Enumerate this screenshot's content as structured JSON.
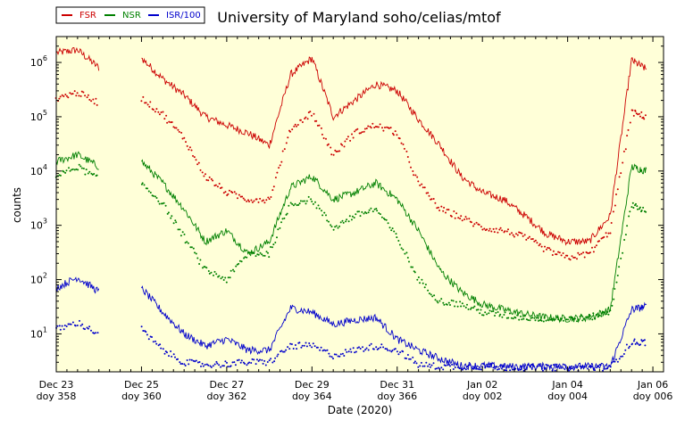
{
  "chart_data": {
    "type": "line",
    "title": "University of Maryland  soho/celias/mtof",
    "xlabel": "Date (2020)",
    "ylabel": "counts",
    "xlim": [
      358,
      371
    ],
    "ylim": [
      2,
      3000000
    ],
    "yscale": "log",
    "grid": false,
    "legend": "top-left",
    "background_color": "#ffffd8",
    "x_ticks": [
      {
        "x": 358,
        "date": "Dec 23",
        "doy": "doy 358"
      },
      {
        "x": 360,
        "date": "Dec 25",
        "doy": "doy 360"
      },
      {
        "x": 362,
        "date": "Dec 27",
        "doy": "doy 362"
      },
      {
        "x": 364,
        "date": "Dec 29",
        "doy": "doy 364"
      },
      {
        "x": 366,
        "date": "Dec 31",
        "doy": "doy 366"
      },
      {
        "x": 368,
        "date": "Jan 02",
        "doy": "doy 002"
      },
      {
        "x": 370,
        "date": "Jan 04",
        "doy": "doy 004"
      },
      {
        "x": 372,
        "date": "Jan 06",
        "doy": "doy 006"
      }
    ],
    "y_ticks": [
      {
        "value": 10,
        "base": "10",
        "exp": "1"
      },
      {
        "value": 100,
        "base": "10",
        "exp": "2"
      },
      {
        "value": 1000,
        "base": "10",
        "exp": "3"
      },
      {
        "value": 10000,
        "base": "10",
        "exp": "4"
      },
      {
        "value": 100000,
        "base": "10",
        "exp": "5"
      },
      {
        "value": 1000000,
        "base": "10",
        "exp": "6"
      }
    ],
    "x": [
      358,
      358.5,
      359,
      359.5,
      360,
      360.5,
      361,
      361.5,
      362,
      362.5,
      363,
      363.5,
      364,
      364.5,
      365,
      365.5,
      366,
      366.5,
      367,
      367.5,
      368,
      368.5,
      369,
      369.5,
      370,
      370.5,
      371,
      371.5,
      371.85
    ],
    "series": [
      {
        "name": "FSR",
        "color": "#cc0000",
        "style": "line",
        "scale": 1,
        "values": [
          1500000,
          1700000,
          800000,
          null,
          1200000,
          500000,
          250000,
          100000,
          70000,
          50000,
          30000,
          600000,
          1200000,
          100000,
          200000,
          400000,
          300000,
          90000,
          30000,
          8000,
          4000,
          3000,
          1500,
          700,
          500,
          500,
          1500,
          1100000,
          750000
        ]
      },
      {
        "name": "NSR",
        "color": "#008000",
        "style": "line",
        "scale": 1,
        "values": [
          15000,
          20000,
          12000,
          null,
          15000,
          6000,
          2000,
          500,
          800,
          300,
          500,
          5000,
          8000,
          3000,
          4000,
          6000,
          3000,
          800,
          150,
          60,
          35,
          28,
          23,
          20,
          19,
          20,
          28,
          12000,
          10000
        ]
      },
      {
        "name": "ISR/100",
        "color": "#0000cc",
        "style": "line",
        "scale": 1,
        "values": [
          70,
          110,
          60,
          null,
          70,
          25,
          10,
          6,
          8,
          5,
          5,
          30,
          25,
          15,
          18,
          20,
          8,
          5,
          3.5,
          2.6,
          2.6,
          2.5,
          2.5,
          2.5,
          2.5,
          2.5,
          2.5,
          28,
          32
        ]
      },
      {
        "name": "FSR dots",
        "color": "#cc0000",
        "style": "dots",
        "scale": 1,
        "values": [
          220000,
          280000,
          180000,
          null,
          220000,
          110000,
          40000,
          8000,
          4000,
          3000,
          3000,
          60000,
          120000,
          20000,
          50000,
          70000,
          50000,
          6000,
          2000,
          1400,
          900,
          800,
          600,
          350,
          250,
          300,
          800,
          120000,
          100000
        ]
      },
      {
        "name": "NSR dots",
        "color": "#008000",
        "style": "dots",
        "scale": 1,
        "values": [
          8000,
          12000,
          7000,
          null,
          6000,
          2500,
          600,
          150,
          100,
          300,
          300,
          2500,
          3000,
          900,
          1500,
          2000,
          600,
          100,
          40,
          35,
          25,
          22,
          20,
          19,
          19,
          20,
          25,
          2500,
          1800
        ]
      },
      {
        "name": "ISR dots",
        "color": "#0000cc",
        "style": "dots",
        "scale": 1,
        "values": [
          12,
          16,
          10,
          null,
          12,
          5,
          3,
          2.7,
          2.8,
          3,
          3,
          6,
          6,
          4,
          5,
          6,
          5,
          2.7,
          2.5,
          2.5,
          2.5,
          2.4,
          2.4,
          2.4,
          2.4,
          2.4,
          2.4,
          7,
          7
        ]
      }
    ]
  },
  "legend": {
    "items": [
      {
        "label": "FSR",
        "color": "#cc0000"
      },
      {
        "label": "NSR",
        "color": "#008000"
      },
      {
        "label": "ISR/100",
        "color": "#0000cc"
      }
    ]
  }
}
